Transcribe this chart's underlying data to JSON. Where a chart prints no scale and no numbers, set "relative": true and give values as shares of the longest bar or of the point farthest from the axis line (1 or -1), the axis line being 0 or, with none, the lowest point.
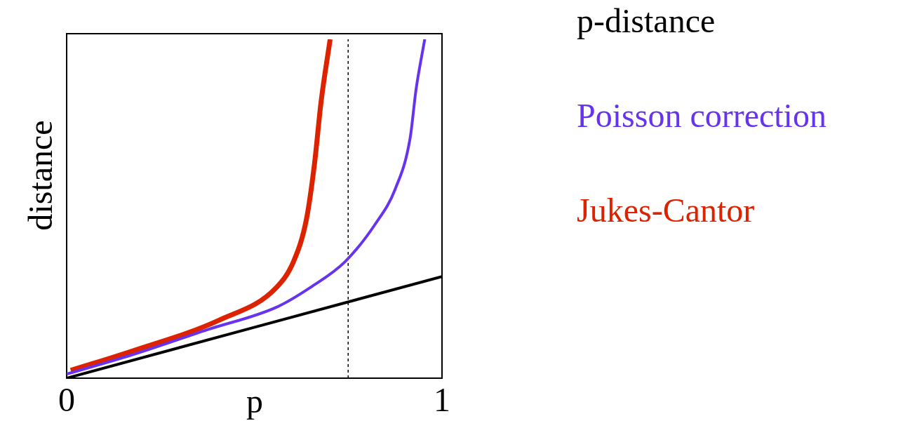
{
  "chart_data": {
    "type": "line",
    "xlabel": "p",
    "ylabel": "distance",
    "relative": true,
    "xlim": [
      0,
      1
    ],
    "xticks": [
      0,
      1
    ],
    "legend": "right",
    "marker": "none",
    "line_style": "solid",
    "series": [
      {
        "name": "p-distance",
        "color": "#000000",
        "x": [
          0,
          1
        ],
        "values": [
          0,
          0.3
        ]
      },
      {
        "name": "Poisson correction",
        "color": "#6633ee",
        "x": [
          0,
          0.178,
          0.375,
          0.56,
          0.651,
          0.742,
          0.823,
          0.875,
          0.915,
          0.931,
          0.954
        ],
        "values": [
          0.012,
          0.07,
          0.143,
          0.21,
          0.269,
          0.344,
          0.456,
          0.557,
          0.708,
          0.853,
          1
        ]
      },
      {
        "name": "Jukes-Cantor",
        "color": "#dd2200",
        "x": [
          0.011,
          0.178,
          0.408,
          0.56,
          0.606,
          0.639,
          0.66,
          0.678,
          0.702
        ],
        "values": [
          0.023,
          0.081,
          0.172,
          0.269,
          0.348,
          0.47,
          0.63,
          0.817,
          1
        ]
      }
    ],
    "ref_lines": [
      {
        "axis": "x",
        "value": 0.75,
        "color": "#000000",
        "line_style": "dashed"
      }
    ]
  }
}
